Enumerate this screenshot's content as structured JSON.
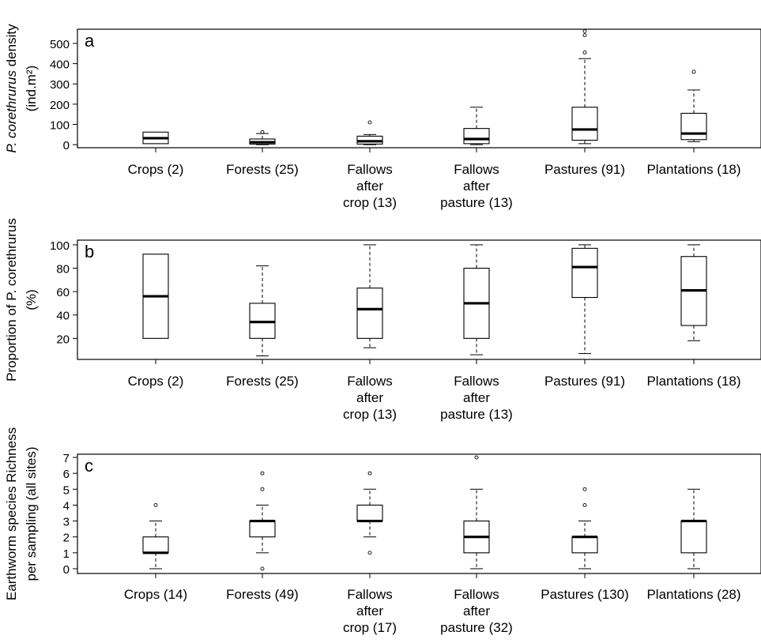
{
  "chart_data": [
    {
      "type": "box",
      "panel_letter": "a",
      "ylabel_lines": [
        "P. corethrurus density",
        "(ind.m²)"
      ],
      "ylabel_italic_part": "P. corethrurus",
      "ylim": [
        -15,
        570
      ],
      "yticks": [
        0,
        100,
        200,
        300,
        400,
        500
      ],
      "categories": [
        [
          "Crops (2)"
        ],
        [
          "Forests (25)"
        ],
        [
          "Fallows",
          "after",
          "crop (13)"
        ],
        [
          "Fallows",
          "after",
          "pasture (13)"
        ],
        [
          "Pastures (91)"
        ],
        [
          "Plantations (18)"
        ]
      ],
      "boxes": [
        {
          "q1": 5,
          "median": 32,
          "q3": 62,
          "whisker_low": null,
          "whisker_high": null,
          "outliers": []
        },
        {
          "q1": 3,
          "median": 12,
          "q3": 28,
          "whisker_low": 0,
          "whisker_high": 55,
          "outliers": [
            62
          ]
        },
        {
          "q1": 3,
          "median": 17,
          "q3": 42,
          "whisker_low": 0,
          "whisker_high": 50,
          "outliers": [
            110
          ]
        },
        {
          "q1": 5,
          "median": 28,
          "q3": 80,
          "whisker_low": 0,
          "whisker_high": 185,
          "outliers": []
        },
        {
          "q1": 22,
          "median": 75,
          "q3": 185,
          "whisker_low": 5,
          "whisker_high": 425,
          "outliers": [
            455,
            540,
            560
          ]
        },
        {
          "q1": 25,
          "median": 55,
          "q3": 155,
          "whisker_low": 15,
          "whisker_high": 270,
          "outliers": [
            360
          ]
        }
      ]
    },
    {
      "type": "box",
      "panel_letter": "b",
      "ylabel_lines": [
        "Proportion of P. corethrurus",
        "(%)"
      ],
      "ylabel_italic_part": "P. corethrurus",
      "ylim": [
        2,
        104
      ],
      "yticks": [
        20,
        40,
        60,
        80,
        100
      ],
      "categories": [
        [
          "Crops (2)"
        ],
        [
          "Forests (25)"
        ],
        [
          "Fallows",
          "after",
          "crop (13)"
        ],
        [
          "Fallows",
          "after",
          "pasture (13)"
        ],
        [
          "Pastures (91)"
        ],
        [
          "Plantations (18)"
        ]
      ],
      "boxes": [
        {
          "q1": 20,
          "median": 56,
          "q3": 92,
          "whisker_low": null,
          "whisker_high": null,
          "outliers": []
        },
        {
          "q1": 20,
          "median": 34,
          "q3": 50,
          "whisker_low": 5,
          "whisker_high": 82,
          "outliers": []
        },
        {
          "q1": 20,
          "median": 45,
          "q3": 63,
          "whisker_low": 12,
          "whisker_high": 100,
          "outliers": []
        },
        {
          "q1": 20,
          "median": 50,
          "q3": 80,
          "whisker_low": 6,
          "whisker_high": 100,
          "outliers": []
        },
        {
          "q1": 55,
          "median": 81,
          "q3": 97,
          "whisker_low": 7,
          "whisker_high": 100,
          "outliers": []
        },
        {
          "q1": 31,
          "median": 61,
          "q3": 90,
          "whisker_low": 18,
          "whisker_high": 100,
          "outliers": []
        }
      ]
    },
    {
      "type": "box",
      "panel_letter": "c",
      "ylabel_lines": [
        "Earthworm species Richness",
        "per sampling (all sites)"
      ],
      "ylabel_italic_part": "",
      "ylim": [
        -0.3,
        7.2
      ],
      "yticks": [
        0,
        1,
        2,
        3,
        4,
        5,
        6,
        7
      ],
      "categories": [
        [
          "Crops (14)"
        ],
        [
          "Forests (49)"
        ],
        [
          "Fallows",
          "after",
          "crop (17)"
        ],
        [
          "Fallows",
          "after",
          "pasture (32)"
        ],
        [
          "Pastures (130)"
        ],
        [
          "Plantations (28)"
        ]
      ],
      "boxes": [
        {
          "q1": 1,
          "median": 1,
          "q3": 2,
          "whisker_low": 0,
          "whisker_high": 3,
          "outliers": [
            4
          ]
        },
        {
          "q1": 2,
          "median": 3,
          "q3": 3,
          "whisker_low": 1,
          "whisker_high": 4,
          "outliers": [
            0,
            5,
            6
          ]
        },
        {
          "q1": 3,
          "median": 3,
          "q3": 4,
          "whisker_low": 2,
          "whisker_high": 5,
          "outliers": [
            1,
            6
          ]
        },
        {
          "q1": 1,
          "median": 2,
          "q3": 3,
          "whisker_low": 0,
          "whisker_high": 5,
          "outliers": [
            7
          ]
        },
        {
          "q1": 1,
          "median": 2,
          "q3": 2,
          "whisker_low": 0,
          "whisker_high": 3,
          "outliers": [
            4,
            5
          ]
        },
        {
          "q1": 1,
          "median": 3,
          "q3": 3,
          "whisker_low": 0,
          "whisker_high": 5,
          "outliers": []
        }
      ]
    }
  ]
}
